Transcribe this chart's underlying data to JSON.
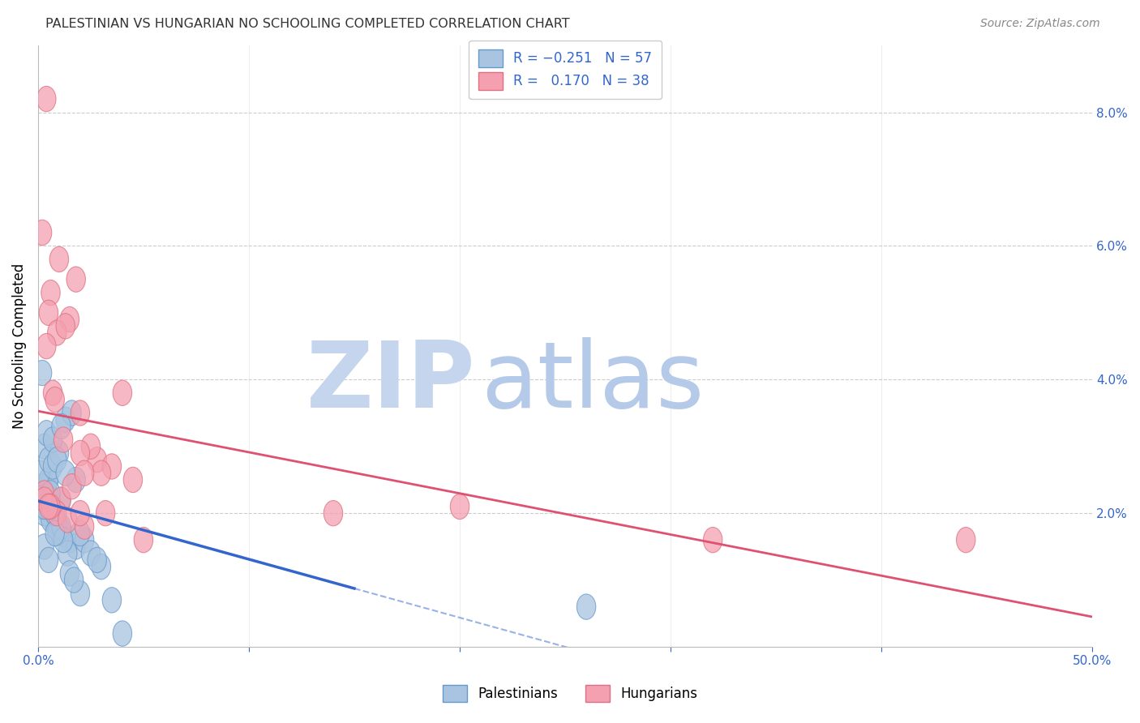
{
  "title": "PALESTINIAN VS HUNGARIAN NO SCHOOLING COMPLETED CORRELATION CHART",
  "source": "Source: ZipAtlas.com",
  "ylabel": "No Schooling Completed",
  "xlim": [
    0,
    50
  ],
  "ylim": [
    0,
    9
  ],
  "blue_color": "#A8C4E0",
  "pink_color": "#F4A0B0",
  "blue_edge_color": "#6699CC",
  "pink_edge_color": "#E07080",
  "blue_line_color": "#3366CC",
  "pink_line_color": "#E05070",
  "watermark_zip_color": "#C8D8F0",
  "watermark_atlas_color": "#B0C8E8",
  "background_color": "#FFFFFF",
  "grid_color": "#CCCCCC",
  "axis_label_color": "#3366CC",
  "palestinians_x": [
    0.3,
    0.5,
    0.8,
    1.0,
    0.2,
    0.4,
    0.7,
    1.2,
    1.5,
    0.1,
    0.3,
    0.6,
    0.9,
    1.1,
    0.4,
    0.6,
    1.8,
    2.2,
    2.5,
    3.0,
    0.2,
    0.5,
    0.8,
    1.3,
    1.6,
    2.0,
    0.1,
    0.3,
    0.5,
    0.7,
    1.0,
    1.4,
    0.9,
    1.1,
    2.8,
    4.0,
    0.4,
    0.6,
    0.8,
    1.2,
    0.3,
    0.5,
    1.5,
    2.0,
    3.5,
    1.8,
    0.2,
    0.4,
    0.7,
    0.9,
    1.3,
    1.7,
    26.0,
    0.6,
    1.1,
    0.8,
    0.3
  ],
  "palestinians_y": [
    2.2,
    2.5,
    2.0,
    1.8,
    2.3,
    2.4,
    1.9,
    1.7,
    1.6,
    2.1,
    2.0,
    2.1,
    1.8,
    2.2,
    2.3,
    1.9,
    1.5,
    1.6,
    1.4,
    1.2,
    2.4,
    2.5,
    2.0,
    3.4,
    3.5,
    1.7,
    2.6,
    3.0,
    2.8,
    2.7,
    2.9,
    1.4,
    1.7,
    1.8,
    1.3,
    0.2,
    2.1,
    2.2,
    2.0,
    1.6,
    1.5,
    1.3,
    1.1,
    0.8,
    0.7,
    2.5,
    4.1,
    3.2,
    3.1,
    2.8,
    2.6,
    1.0,
    0.6,
    2.3,
    3.3,
    1.7,
    2.1
  ],
  "hungarians_x": [
    0.3,
    0.6,
    1.0,
    1.5,
    2.0,
    2.8,
    3.5,
    4.5,
    0.2,
    0.5,
    0.9,
    1.3,
    1.8,
    2.5,
    0.4,
    0.7,
    1.2,
    2.0,
    3.0,
    4.0,
    0.3,
    0.8,
    1.1,
    1.6,
    2.2,
    5.0,
    14.0,
    20.0,
    0.4,
    0.9,
    1.4,
    2.2,
    3.2,
    0.6,
    2.0,
    0.5,
    32.0,
    44.0
  ],
  "hungarians_y": [
    2.3,
    5.3,
    5.8,
    4.9,
    3.5,
    2.8,
    2.7,
    2.5,
    6.2,
    5.0,
    4.7,
    4.8,
    5.5,
    3.0,
    4.5,
    3.8,
    3.1,
    2.9,
    2.6,
    3.8,
    2.2,
    3.7,
    2.2,
    2.4,
    2.6,
    1.6,
    2.0,
    2.1,
    8.2,
    2.0,
    1.9,
    1.8,
    2.0,
    2.1,
    2.0,
    2.1,
    1.6,
    1.6
  ]
}
